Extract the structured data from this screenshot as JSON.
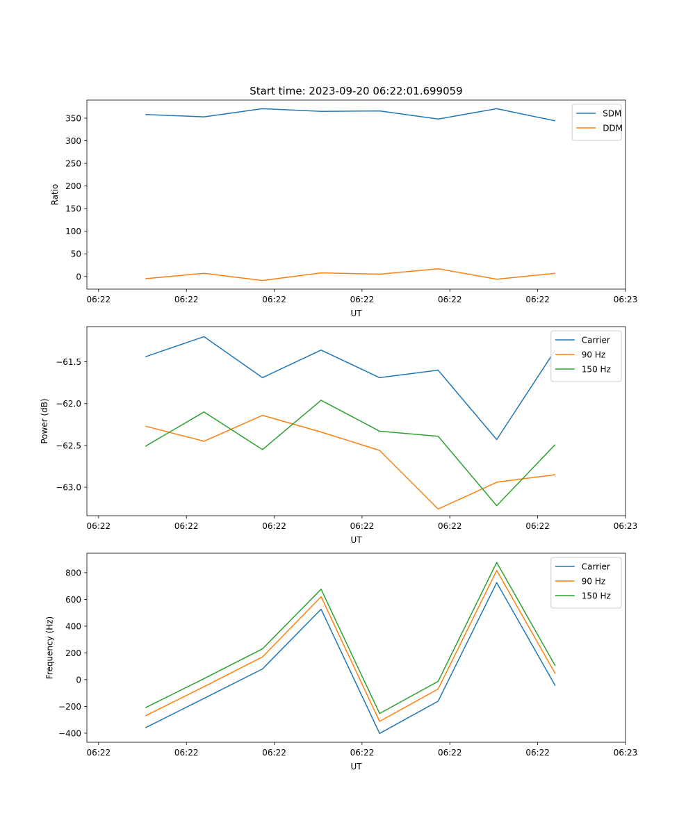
{
  "title": "Start time: 2023-09-20 06:22:01.699059",
  "colors": {
    "blue": "#1f77b4",
    "orange": "#ff7f0e",
    "green": "#2ca02c"
  },
  "chart_data": [
    {
      "type": "line",
      "xlabel": "UT",
      "ylabel": "Ratio",
      "x": [
        1,
        2,
        3,
        4,
        5,
        6,
        7,
        8
      ],
      "xlim": [
        0,
        9.2
      ],
      "xticks": [
        0.2,
        1.7,
        3.2,
        4.7,
        6.2,
        7.7,
        9.2
      ],
      "xtick_labels": [
        "06:22",
        "06:22",
        "06:22",
        "06:22",
        "06:22",
        "06:22",
        "06:23"
      ],
      "ylim": [
        -28,
        390
      ],
      "yticks": [
        0,
        50,
        100,
        150,
        200,
        250,
        300,
        350
      ],
      "ytick_labels": [
        "0",
        "50",
        "100",
        "150",
        "200",
        "250",
        "300",
        "350"
      ],
      "legend": "top-right",
      "series": [
        {
          "name": "SDM",
          "color": "#1f77b4",
          "values": [
            358,
            353,
            371,
            365,
            366,
            348,
            371,
            344
          ]
        },
        {
          "name": "DDM",
          "color": "#ff7f0e",
          "values": [
            -5,
            7,
            -9,
            8,
            5,
            17,
            -6,
            7
          ]
        }
      ]
    },
    {
      "type": "line",
      "xlabel": "UT",
      "ylabel": "Power (dB)",
      "x": [
        1,
        2,
        3,
        4,
        5,
        6,
        7,
        8
      ],
      "xlim": [
        0,
        9.2
      ],
      "xticks": [
        0.2,
        1.7,
        3.2,
        4.7,
        6.2,
        7.7,
        9.2
      ],
      "xtick_labels": [
        "06:22",
        "06:22",
        "06:22",
        "06:22",
        "06:22",
        "06:22",
        "06:23"
      ],
      "ylim": [
        -63.34,
        -61.08
      ],
      "yticks": [
        -63.0,
        -62.5,
        -62.0,
        -61.5
      ],
      "ytick_labels": [
        "−63.0",
        "−62.5",
        "−62.0",
        "−61.5"
      ],
      "legend": "top-right",
      "series": [
        {
          "name": "Carrier",
          "color": "#1f77b4",
          "values": [
            -61.44,
            -61.2,
            -61.69,
            -61.36,
            -61.69,
            -61.6,
            -62.43,
            -61.36
          ]
        },
        {
          "name": "90 Hz",
          "color": "#ff7f0e",
          "values": [
            -62.27,
            -62.45,
            -62.14,
            -62.34,
            -62.56,
            -63.26,
            -62.94,
            -62.85
          ]
        },
        {
          "name": "150 Hz",
          "color": "#2ca02c",
          "values": [
            -62.51,
            -62.1,
            -62.55,
            -61.96,
            -62.33,
            -62.39,
            -63.22,
            -62.49
          ]
        }
      ]
    },
    {
      "type": "line",
      "xlabel": "UT",
      "ylabel": "Frequency (Hz)",
      "x": [
        1,
        2,
        3,
        4,
        5,
        6,
        7,
        8
      ],
      "xlim": [
        0,
        9.2
      ],
      "xticks": [
        0.2,
        1.7,
        3.2,
        4.7,
        6.2,
        7.7,
        9.2
      ],
      "xtick_labels": [
        "06:22",
        "06:22",
        "06:22",
        "06:22",
        "06:22",
        "06:22",
        "06:23"
      ],
      "ylim": [
        -468,
        945
      ],
      "yticks": [
        -400,
        -200,
        0,
        200,
        400,
        600,
        800
      ],
      "ytick_labels": [
        "−400",
        "−200",
        "0",
        "200",
        "400",
        "600",
        "800"
      ],
      "legend": "top-right",
      "series": [
        {
          "name": "Carrier",
          "color": "#1f77b4",
          "values": [
            -360,
            -140,
            80,
            527,
            -402,
            -161,
            726,
            -45
          ]
        },
        {
          "name": "90 Hz",
          "color": "#ff7f0e",
          "values": [
            -270,
            -53,
            170,
            620,
            -312,
            -70,
            816,
            45
          ]
        },
        {
          "name": "150 Hz",
          "color": "#2ca02c",
          "values": [
            -210,
            8,
            230,
            676,
            -253,
            -13,
            876,
            104
          ]
        }
      ]
    }
  ]
}
